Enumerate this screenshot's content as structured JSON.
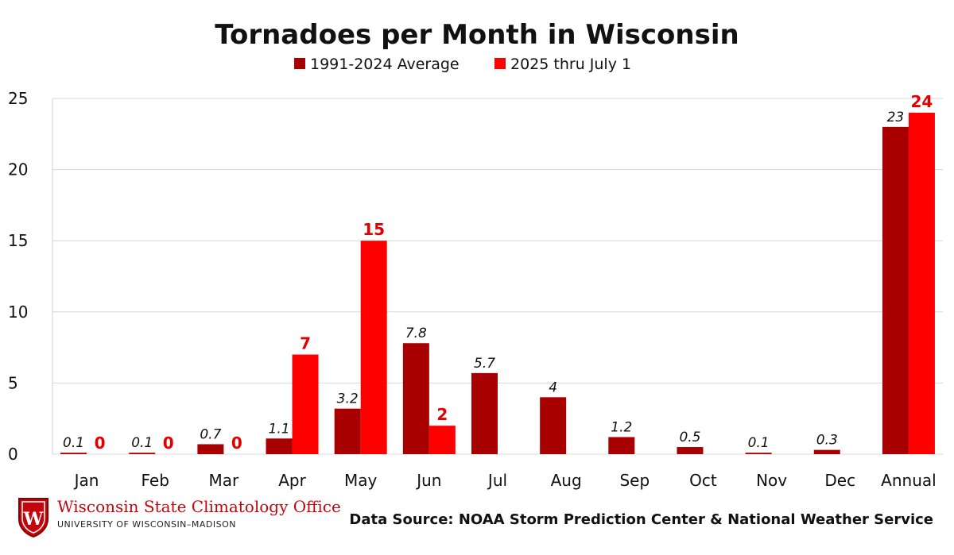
{
  "chart_data": {
    "type": "bar",
    "title": "Tornadoes per Month in Wisconsin",
    "categories": [
      "Jan",
      "Feb",
      "Mar",
      "Apr",
      "May",
      "Jun",
      "Jul",
      "Aug",
      "Sep",
      "Oct",
      "Nov",
      "Dec",
      "Annual"
    ],
    "series": [
      {
        "name": "1991-2024 Average",
        "color": "#a80000",
        "values": [
          0.1,
          0.1,
          0.7,
          1.1,
          3.2,
          7.8,
          5.7,
          4,
          1.2,
          0.5,
          0.1,
          0.3,
          23
        ],
        "labels": [
          "0.1",
          "0.1",
          "0.7",
          "1.1",
          "3.2",
          "7.8",
          "5.7",
          "4",
          "1.2",
          "0.5",
          "0.1",
          "0.3",
          "23"
        ]
      },
      {
        "name": "2025 thru July 1",
        "color": "#ff0000",
        "values": [
          0,
          0,
          0,
          7,
          15,
          2,
          null,
          null,
          null,
          null,
          null,
          null,
          24
        ],
        "labels": [
          "0",
          "0",
          "0",
          "7",
          "15",
          "2",
          null,
          null,
          null,
          null,
          null,
          null,
          "24"
        ]
      }
    ],
    "ylim": [
      0,
      25
    ],
    "yticks": [
      0,
      5,
      10,
      15,
      20,
      25
    ],
    "xlabel": "",
    "ylabel": "",
    "grid": true,
    "legend": "top-center"
  },
  "footer": {
    "office_name": "Wisconsin State Climatology Office",
    "office_sub": "UNIVERSITY OF WISCONSIN–MADISON",
    "logo_letter": "W",
    "logo_icon": "uw-crest-icon",
    "source": "Data Source: NOAA Storm Prediction Center & National Weather Service"
  }
}
